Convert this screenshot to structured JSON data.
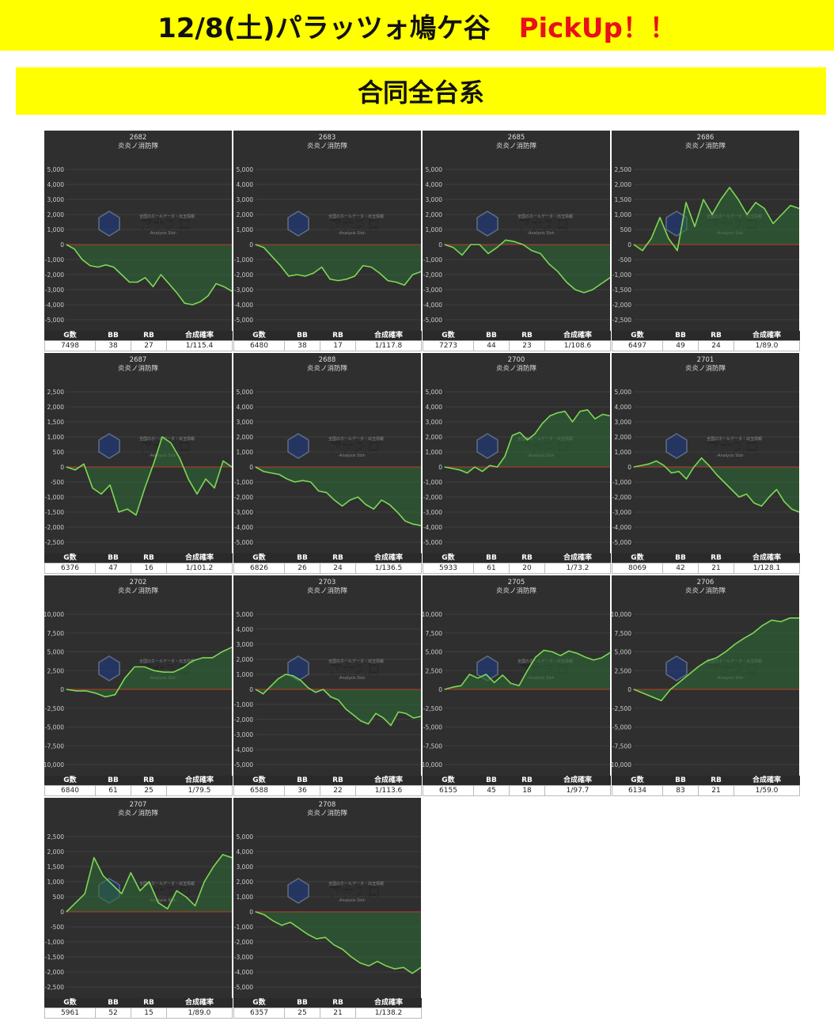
{
  "header": {
    "title": "12/8(土)パラッツォ鳩ケ谷",
    "pickup": "PickUp！！",
    "subtitle": "合同全台系"
  },
  "colors": {
    "banner": "#ffff00",
    "pickup": "#e8101a",
    "line": "#7dd855",
    "fill": "#2e6b34",
    "zero_line": "#c0392b",
    "panel_bg": "#2f2f2f"
  },
  "stats_headers": [
    "G数",
    "BB",
    "RB",
    "合成確率"
  ],
  "watermark": {
    "main": "アナスロ",
    "sub": "-Analysis Slot-",
    "top": "全国のホールデータ・出玉情報"
  },
  "chart_data": [
    {
      "type": "line",
      "machine": "2682",
      "name": "炎炎ノ消防隊",
      "ylim": [
        -5000,
        5000
      ],
      "ticks": [
        "5,000",
        "4,000",
        "3,000",
        "2,000",
        "1,000",
        "0",
        "-1,000",
        "-2,000",
        "-3,000",
        "-4,000",
        "-5,000"
      ],
      "y": [
        0,
        -300,
        -1000,
        -1400,
        -1500,
        -1350,
        -1500,
        -2000,
        -2500,
        -2500,
        -2200,
        -2800,
        -2000,
        -2600,
        -3200,
        -3900,
        -4000,
        -3800,
        -3400,
        -2600,
        -2800,
        -3100
      ],
      "g": "7498",
      "bb": "38",
      "rb": "27",
      "prob": "1/115.4"
    },
    {
      "type": "line",
      "machine": "2683",
      "name": "炎炎ノ消防隊",
      "ylim": [
        -5000,
        5000
      ],
      "ticks": [
        "5,000",
        "4,000",
        "3,000",
        "2,000",
        "1,000",
        "0",
        "-1,000",
        "-2,000",
        "-3,000",
        "-4,000",
        "-5,000"
      ],
      "y": [
        0,
        -200,
        -800,
        -1400,
        -2100,
        -2000,
        -2100,
        -1900,
        -1500,
        -2300,
        -2400,
        -2300,
        -2100,
        -1400,
        -1500,
        -1900,
        -2400,
        -2500,
        -2700,
        -2000,
        -1800
      ],
      "g": "6480",
      "bb": "38",
      "rb": "17",
      "prob": "1/117.8"
    },
    {
      "type": "line",
      "machine": "2685",
      "name": "炎炎ノ消防隊",
      "ylim": [
        -5000,
        5000
      ],
      "ticks": [
        "5,000",
        "4,000",
        "3,000",
        "2,000",
        "1,000",
        "0",
        "-1,000",
        "-2,000",
        "-3,000",
        "-4,000",
        "-5,000"
      ],
      "y": [
        0,
        -200,
        -700,
        0,
        0,
        -600,
        -200,
        300,
        200,
        0,
        -400,
        -600,
        -1300,
        -1800,
        -2500,
        -3000,
        -3200,
        -3000,
        -2600,
        -2200
      ],
      "g": "7273",
      "bb": "44",
      "rb": "23",
      "prob": "1/108.6"
    },
    {
      "type": "line",
      "machine": "2686",
      "name": "炎炎ノ消防隊",
      "ylim": [
        -2500,
        2500
      ],
      "ticks": [
        "2,500",
        "2,000",
        "1,500",
        "1,000",
        "500",
        "0",
        "-500",
        "-1,000",
        "-1,500",
        "-2,000",
        "-2,500"
      ],
      "y": [
        0,
        -200,
        200,
        900,
        200,
        -200,
        1400,
        600,
        1500,
        1000,
        1500,
        1900,
        1500,
        1000,
        1400,
        1200,
        700,
        1000,
        1300,
        1200
      ],
      "g": "6497",
      "bb": "49",
      "rb": "24",
      "prob": "1/89.0"
    },
    {
      "type": "line",
      "machine": "2687",
      "name": "炎炎ノ消防隊",
      "ylim": [
        -2500,
        2500
      ],
      "ticks": [
        "2,500",
        "2,000",
        "1,500",
        "1,000",
        "500",
        "0",
        "-500",
        "-1,000",
        "-1,500",
        "-2,000",
        "-2,500"
      ],
      "y": [
        0,
        -100,
        100,
        -700,
        -900,
        -600,
        -1500,
        -1400,
        -1600,
        -700,
        100,
        1000,
        800,
        300,
        -400,
        -900,
        -400,
        -700,
        200,
        0
      ],
      "g": "6376",
      "bb": "47",
      "rb": "16",
      "prob": "1/101.2"
    },
    {
      "type": "line",
      "machine": "2688",
      "name": "炎炎ノ消防隊",
      "ylim": [
        -5000,
        5000
      ],
      "ticks": [
        "5,000",
        "4,000",
        "3,000",
        "2,000",
        "1,000",
        "0",
        "-1,000",
        "-2,000",
        "-3,000",
        "-4,000",
        "-5,000"
      ],
      "y": [
        0,
        -300,
        -400,
        -500,
        -800,
        -1000,
        -900,
        -1000,
        -1600,
        -1700,
        -2200,
        -2600,
        -2200,
        -2000,
        -2500,
        -2800,
        -2200,
        -2500,
        -3000,
        -3600,
        -3800,
        -3900
      ],
      "g": "6826",
      "bb": "26",
      "rb": "24",
      "prob": "1/136.5"
    },
    {
      "type": "line",
      "machine": "2700",
      "name": "炎炎ノ消防隊",
      "ylim": [
        -5000,
        5000
      ],
      "ticks": [
        "5,000",
        "4,000",
        "3,000",
        "2,000",
        "1,000",
        "0",
        "-1,000",
        "-2,000",
        "-3,000",
        "-4,000",
        "-5,000"
      ],
      "y": [
        0,
        -100,
        -200,
        -400,
        0,
        -300,
        100,
        0,
        700,
        2100,
        2300,
        1800,
        2200,
        2900,
        3400,
        3600,
        3700,
        3000,
        3700,
        3800,
        3200,
        3500,
        3400
      ],
      "g": "5933",
      "bb": "61",
      "rb": "20",
      "prob": "1/73.2"
    },
    {
      "type": "line",
      "machine": "2701",
      "name": "炎炎ノ消防隊",
      "ylim": [
        -5000,
        5000
      ],
      "ticks": [
        "5,000",
        "4,000",
        "3,000",
        "2,000",
        "1,000",
        "0",
        "-1,000",
        "-2,000",
        "-3,000",
        "-4,000",
        "-5,000"
      ],
      "y": [
        0,
        100,
        200,
        400,
        100,
        -400,
        -300,
        -800,
        0,
        600,
        100,
        -500,
        -1000,
        -1500,
        -2000,
        -1800,
        -2400,
        -2600,
        -2000,
        -1500,
        -2300,
        -2800,
        -3000
      ],
      "g": "8069",
      "bb": "42",
      "rb": "21",
      "prob": "1/128.1"
    },
    {
      "type": "line",
      "machine": "2702",
      "name": "炎炎ノ消防隊",
      "ylim": [
        -10000,
        10000
      ],
      "ticks": [
        "10,000",
        "7,500",
        "5,000",
        "2,500",
        "0",
        "-2,500",
        "-5,000",
        "-7,500",
        "-10,000"
      ],
      "y": [
        0,
        -200,
        -200,
        -500,
        -1000,
        -700,
        1500,
        3000,
        3000,
        2500,
        2300,
        2300,
        2900,
        3800,
        4200,
        4200,
        5000,
        5600
      ],
      "g": "6840",
      "bb": "61",
      "rb": "25",
      "prob": "1/79.5"
    },
    {
      "type": "line",
      "machine": "2703",
      "name": "炎炎ノ消防隊",
      "ylim": [
        -5000,
        5000
      ],
      "ticks": [
        "5,000",
        "4,000",
        "3,000",
        "2,000",
        "1,000",
        "0",
        "-1,000",
        "-2,000",
        "-3,000",
        "-4,000",
        "-5,000"
      ],
      "y": [
        0,
        -300,
        200,
        700,
        1000,
        900,
        600,
        100,
        -200,
        0,
        -500,
        -700,
        -1300,
        -1700,
        -2100,
        -2300,
        -1600,
        -1900,
        -2400,
        -1500,
        -1600,
        -1900,
        -1800
      ],
      "g": "6588",
      "bb": "36",
      "rb": "22",
      "prob": "1/113.6"
    },
    {
      "type": "line",
      "machine": "2705",
      "name": "炎炎ノ消防隊",
      "ylim": [
        -10000,
        10000
      ],
      "ticks": [
        "10,000",
        "7,500",
        "5,000",
        "2,500",
        "0",
        "-2,500",
        "-5,000",
        "-7,500",
        "-10,000"
      ],
      "y": [
        0,
        300,
        500,
        2000,
        1500,
        2000,
        900,
        1900,
        800,
        500,
        2500,
        4300,
        5200,
        5000,
        4500,
        5100,
        4800,
        4300,
        3900,
        4200,
        4900
      ],
      "g": "6155",
      "bb": "45",
      "rb": "18",
      "prob": "1/97.7"
    },
    {
      "type": "line",
      "machine": "2706",
      "name": "炎炎ノ消防隊",
      "ylim": [
        -10000,
        10000
      ],
      "ticks": [
        "10,000",
        "7,500",
        "5,000",
        "2,500",
        "0",
        "-2,500",
        "-5,000",
        "-7,500",
        "-10,000"
      ],
      "y": [
        0,
        -500,
        -1000,
        -1500,
        0,
        1000,
        2000,
        3000,
        3800,
        4200,
        5000,
        6000,
        6800,
        7500,
        8500,
        9200,
        9000,
        9500,
        9500
      ],
      "g": "6134",
      "bb": "83",
      "rb": "21",
      "prob": "1/59.0"
    },
    {
      "type": "line",
      "machine": "2707",
      "name": "炎炎ノ消防隊",
      "ylim": [
        -2500,
        2500
      ],
      "ticks": [
        "2,500",
        "2,000",
        "1,500",
        "1,000",
        "500",
        "0",
        "-500",
        "-1,000",
        "-1,500",
        "-2,000",
        "-2,500"
      ],
      "y": [
        0,
        300,
        600,
        1800,
        1200,
        900,
        600,
        1300,
        700,
        1000,
        300,
        100,
        700,
        500,
        200,
        1000,
        1500,
        1900,
        1800
      ],
      "g": "5961",
      "bb": "52",
      "rb": "15",
      "prob": "1/89.0"
    },
    {
      "type": "line",
      "machine": "2708",
      "name": "炎炎ノ消防隊",
      "ylim": [
        -5000,
        5000
      ],
      "ticks": [
        "5,000",
        "4,000",
        "3,000",
        "2,000",
        "1,000",
        "0",
        "-1,000",
        "-2,000",
        "-3,000",
        "-4,000",
        "-5,000"
      ],
      "y": [
        0,
        -200,
        -600,
        -900,
        -700,
        -1100,
        -1500,
        -1800,
        -1700,
        -2200,
        -2500,
        -3000,
        -3400,
        -3600,
        -3300,
        -3600,
        -3800,
        -3700,
        -4100,
        -3700
      ],
      "g": "6357",
      "bb": "25",
      "rb": "21",
      "prob": "1/138.2"
    }
  ]
}
